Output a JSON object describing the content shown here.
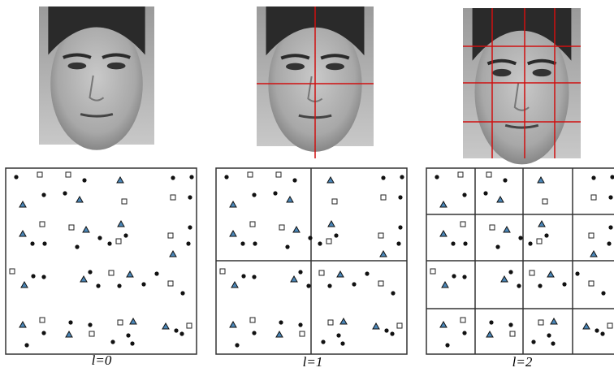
{
  "panels": [
    {
      "label": "l=0"
    },
    {
      "label": "l=1"
    },
    {
      "label": "l=2"
    }
  ]
}
